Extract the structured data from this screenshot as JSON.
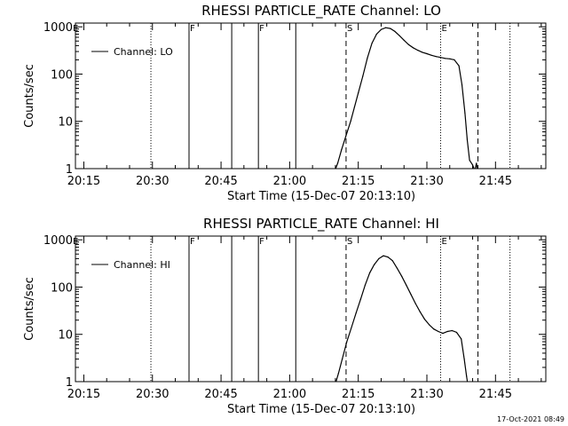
{
  "footer": {
    "timestamp": "17-Oct-2021 08:49"
  },
  "chart_data": [
    {
      "type": "line",
      "title": "RHESSI PARTICLE_RATE Channel: LO",
      "xlabel": "Start Time (15-Dec-07 20:13:10)",
      "ylabel": "Counts/sec",
      "y_scale": "log",
      "ylim": [
        1,
        1200
      ],
      "y_ticks": [
        {
          "value": 1,
          "label": "1"
        },
        {
          "value": 10,
          "label": "10"
        },
        {
          "value": 100,
          "label": "100"
        },
        {
          "value": 1000,
          "label": "1000"
        }
      ],
      "xlim": [
        "20:13:10",
        "21:56"
      ],
      "x_ticks": [
        "20:15",
        "20:30",
        "20:45",
        "21:00",
        "21:15",
        "21:30",
        "21:45"
      ],
      "grid": false,
      "legend": {
        "position": "top-left",
        "entries": [
          "Channel: LO"
        ]
      },
      "vlines": [
        {
          "x": "20:29:40",
          "style": "dotted"
        },
        {
          "x": "20:38:00",
          "style": "solid",
          "label": "F"
        },
        {
          "x": "20:47:20",
          "style": "solid"
        },
        {
          "x": "20:53:10",
          "style": "solid",
          "label": "F"
        },
        {
          "x": "21:01:20",
          "style": "solid"
        },
        {
          "x": "21:12:20",
          "style": "dashed",
          "label": "S"
        },
        {
          "x": "21:33:00",
          "style": "dotted",
          "label": "E"
        },
        {
          "x": "21:41:10",
          "style": "dashed"
        },
        {
          "x": "21:48:10",
          "style": "dotted"
        }
      ],
      "edge_labels": [
        "E"
      ],
      "series": [
        {
          "name": "Channel: LO",
          "points": [
            [
              "21:09:40",
              0.8
            ],
            [
              "21:10:30",
              1.3
            ],
            [
              "21:11:20",
              2.5
            ],
            [
              "21:12:20",
              5
            ],
            [
              "21:13:20",
              10
            ],
            [
              "21:14:10",
              20
            ],
            [
              "21:15:00",
              40
            ],
            [
              "21:16:00",
              90
            ],
            [
              "21:17:00",
              220
            ],
            [
              "21:18:00",
              450
            ],
            [
              "21:19:00",
              700
            ],
            [
              "21:20:00",
              880
            ],
            [
              "21:21:00",
              960
            ],
            [
              "21:22:00",
              920
            ],
            [
              "21:23:00",
              800
            ],
            [
              "21:24:00",
              650
            ],
            [
              "21:25:00",
              520
            ],
            [
              "21:26:00",
              420
            ],
            [
              "21:27:00",
              360
            ],
            [
              "21:28:00",
              320
            ],
            [
              "21:29:00",
              290
            ],
            [
              "21:30:00",
              270
            ],
            [
              "21:31:00",
              250
            ],
            [
              "21:32:00",
              235
            ],
            [
              "21:33:00",
              225
            ],
            [
              "21:34:00",
              215
            ],
            [
              "21:35:00",
              210
            ],
            [
              "21:36:00",
              200
            ],
            [
              "21:37:00",
              150
            ],
            [
              "21:37:40",
              60
            ],
            [
              "21:38:20",
              15
            ],
            [
              "21:38:50",
              4
            ],
            [
              "21:39:20",
              1.5
            ],
            [
              "21:40:00",
              1.2
            ],
            [
              "21:40:30",
              0.9
            ],
            [
              "21:40:50",
              1.3
            ],
            [
              "21:41:10",
              0.8
            ]
          ]
        }
      ]
    },
    {
      "type": "line",
      "title": "RHESSI PARTICLE_RATE Channel: HI",
      "xlabel": "Start Time (15-Dec-07 20:13:10)",
      "ylabel": "Counts/sec",
      "y_scale": "log",
      "ylim": [
        1,
        1200
      ],
      "y_ticks": [
        {
          "value": 1,
          "label": "1"
        },
        {
          "value": 10,
          "label": "10"
        },
        {
          "value": 100,
          "label": "100"
        },
        {
          "value": 1000,
          "label": "1000"
        }
      ],
      "xlim": [
        "20:13:10",
        "21:56"
      ],
      "x_ticks": [
        "20:15",
        "20:30",
        "20:45",
        "21:00",
        "21:15",
        "21:30",
        "21:45"
      ],
      "grid": false,
      "legend": {
        "position": "top-left",
        "entries": [
          "Channel: HI"
        ]
      },
      "vlines": [
        {
          "x": "20:29:40",
          "style": "dotted"
        },
        {
          "x": "20:38:00",
          "style": "solid",
          "label": "F"
        },
        {
          "x": "20:47:20",
          "style": "solid"
        },
        {
          "x": "20:53:10",
          "style": "solid",
          "label": "F"
        },
        {
          "x": "21:01:20",
          "style": "solid"
        },
        {
          "x": "21:12:20",
          "style": "dashed",
          "label": "S"
        },
        {
          "x": "21:33:00",
          "style": "dotted",
          "label": "E"
        },
        {
          "x": "21:41:10",
          "style": "dashed"
        },
        {
          "x": "21:48:10",
          "style": "dotted"
        }
      ],
      "edge_labels": [
        "E"
      ],
      "series": [
        {
          "name": "Channel: HI",
          "points": [
            [
              "21:09:50",
              0.8
            ],
            [
              "21:10:40",
              1.5
            ],
            [
              "21:11:30",
              3
            ],
            [
              "21:12:30",
              7
            ],
            [
              "21:13:30",
              14
            ],
            [
              "21:14:30",
              28
            ],
            [
              "21:15:30",
              55
            ],
            [
              "21:16:30",
              110
            ],
            [
              "21:17:30",
              200
            ],
            [
              "21:18:30",
              300
            ],
            [
              "21:19:30",
              400
            ],
            [
              "21:20:30",
              460
            ],
            [
              "21:21:30",
              430
            ],
            [
              "21:22:30",
              360
            ],
            [
              "21:23:30",
              250
            ],
            [
              "21:24:30",
              170
            ],
            [
              "21:25:30",
              110
            ],
            [
              "21:26:30",
              70
            ],
            [
              "21:27:30",
              45
            ],
            [
              "21:28:30",
              30
            ],
            [
              "21:29:30",
              21
            ],
            [
              "21:30:30",
              16
            ],
            [
              "21:31:30",
              13
            ],
            [
              "21:32:30",
              11.5
            ],
            [
              "21:33:30",
              10.5
            ],
            [
              "21:34:30",
              11.5
            ],
            [
              "21:35:30",
              12
            ],
            [
              "21:36:30",
              11
            ],
            [
              "21:37:30",
              8
            ],
            [
              "21:38:10",
              3
            ],
            [
              "21:38:40",
              1.3
            ],
            [
              "21:39:00",
              0.8
            ]
          ]
        }
      ]
    }
  ]
}
